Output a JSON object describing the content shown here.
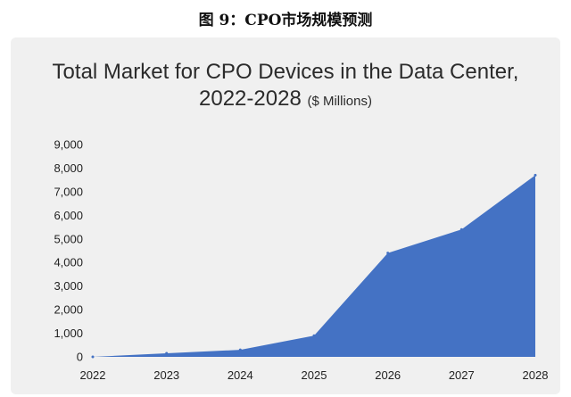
{
  "figure_caption": "图 9：CPO市场规模预测",
  "chart_data": {
    "type": "area",
    "title_line1": "Total Market for CPO Devices in the Data Center,",
    "title_line2": "2022-2028",
    "title_unit": "($ Millions)",
    "x": [
      "2022",
      "2023",
      "2024",
      "2025",
      "2026",
      "2027",
      "2028"
    ],
    "y_ticks": [
      "0",
      "1,000",
      "2,000",
      "3,000",
      "4,000",
      "5,000",
      "6,000",
      "7,000",
      "8,000",
      "9,000"
    ],
    "ylim": [
      0,
      9000
    ],
    "series": [
      {
        "values": [
          0,
          150,
          300,
          900,
          4400,
          5400,
          7700
        ]
      }
    ],
    "fill_color": "#4472c4",
    "grid": false,
    "legend": "none"
  }
}
